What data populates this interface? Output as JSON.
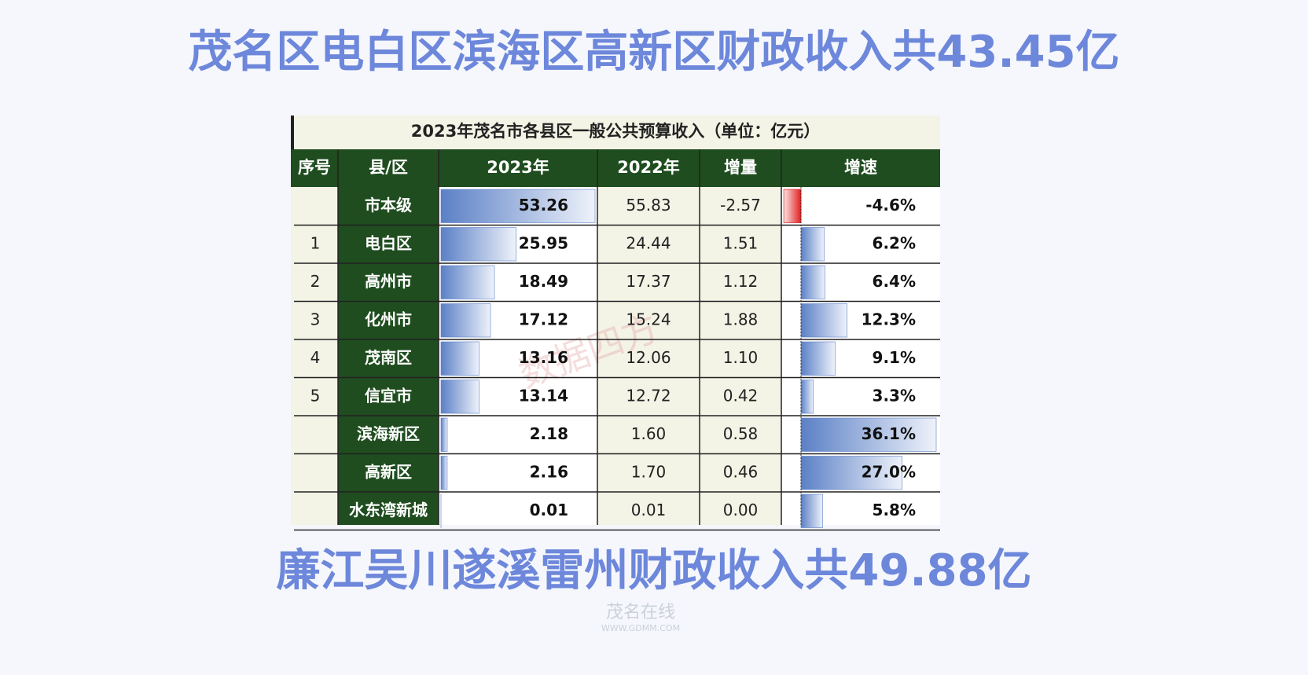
{
  "header": {
    "title": "茂名区电白区滨海区高新区财政收入共43.45亿"
  },
  "table": {
    "title": "2023年茂名市各县区一般公共预算收入（单位：亿元）",
    "columns": [
      "序号",
      "县/区",
      "2023年",
      "2022年",
      "增量",
      "增速"
    ],
    "rows": [
      [
        null,
        "市本级",
        "53.26",
        "55.83",
        "-2.57",
        "-4.6%"
      ],
      [
        "1",
        "电白区",
        "25.95",
        "24.44",
        "1.51",
        "6.2%"
      ],
      [
        "2",
        "高州市",
        "18.49",
        "17.37",
        "1.12",
        "6.4%"
      ],
      [
        "3",
        "化州市",
        "17.12",
        "15.24",
        "1.88",
        "12.3%"
      ],
      [
        "4",
        "茂南区",
        "13.16",
        "12.06",
        "1.10",
        "9.1%"
      ],
      [
        "5",
        "信宜市",
        "13.14",
        "12.72",
        "0.42",
        "3.3%"
      ],
      [
        null,
        "滨海新区",
        "2.18",
        "1.60",
        "0.58",
        "36.1%"
      ],
      [
        null,
        "高新区",
        "2.16",
        "1.70",
        "0.46",
        "27.0%"
      ],
      [
        null,
        "水东湾新城",
        "0.01",
        "0.01",
        "0.00",
        "5.8%"
      ]
    ],
    "watermark": "数据四方"
  },
  "footer": {
    "title": "廉江吴川遂溪雷州财政收入共49.88亿",
    "logo": "茂名在线",
    "site": "WWW.GDMM.COM"
  }
}
